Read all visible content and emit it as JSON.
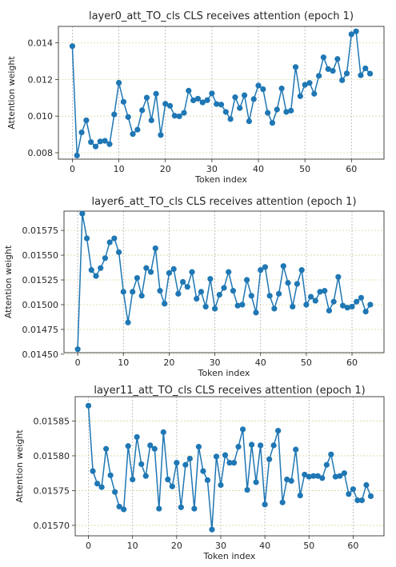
{
  "chart_data": [
    {
      "type": "line",
      "title": "layer0_att_TO_cls CLS receives attention (epoch 1)",
      "xlabel": "Token index",
      "ylabel": "Attention weight",
      "xlim": [
        -3,
        67
      ],
      "ylim": [
        0.00765,
        0.0149
      ],
      "xticks": [
        0,
        10,
        20,
        30,
        40,
        50,
        60
      ],
      "yticks": [
        0.008,
        0.01,
        0.012,
        0.014
      ],
      "ytick_labels": [
        "0.008",
        "0.010",
        "0.012",
        "0.014"
      ],
      "grid": true,
      "series": [
        {
          "color": "#1f77b4",
          "x": [
            0,
            1,
            2,
            3,
            4,
            5,
            6,
            7,
            8,
            9,
            10,
            11,
            12,
            13,
            14,
            15,
            16,
            17,
            18,
            19,
            20,
            21,
            22,
            23,
            24,
            25,
            26,
            27,
            28,
            29,
            30,
            31,
            32,
            33,
            34,
            35,
            36,
            37,
            38,
            39,
            40,
            41,
            42,
            43,
            44,
            45,
            46,
            47,
            48,
            49,
            50,
            51,
            52,
            53,
            54,
            55,
            56,
            57,
            58,
            59,
            60,
            61,
            62,
            63,
            64
          ],
          "values": [
            0.01382,
            0.00785,
            0.00911,
            0.00977,
            0.00858,
            0.00834,
            0.00862,
            0.00865,
            0.00847,
            0.01009,
            0.01182,
            0.01078,
            0.00995,
            0.00902,
            0.00926,
            0.01032,
            0.01101,
            0.00977,
            0.01122,
            0.00897,
            0.01067,
            0.01056,
            0.01002,
            0.00999,
            0.01018,
            0.01139,
            0.01086,
            0.01095,
            0.01075,
            0.01087,
            0.01124,
            0.01066,
            0.01063,
            0.01023,
            0.00984,
            0.01103,
            0.01044,
            0.01114,
            0.00972,
            0.01093,
            0.01167,
            0.01147,
            0.01018,
            0.00963,
            0.01036,
            0.01151,
            0.01023,
            0.0103,
            0.01268,
            0.01109,
            0.01171,
            0.01181,
            0.01122,
            0.0122,
            0.01321,
            0.01257,
            0.01247,
            0.01312,
            0.01196,
            0.01233,
            0.01447,
            0.01463,
            0.01223,
            0.01261,
            0.01232
          ]
        }
      ]
    },
    {
      "type": "line",
      "title": "layer6_att_TO_cls CLS receives attention (epoch 1)",
      "xlabel": "Token index",
      "ylabel": "Attention weight",
      "xlim": [
        -3,
        67
      ],
      "ylim": [
        0.014515,
        0.015945
      ],
      "xticks": [
        0,
        10,
        20,
        30,
        40,
        50,
        60
      ],
      "yticks": [
        0.0145,
        0.01475,
        0.015,
        0.01525,
        0.0155,
        0.01575
      ],
      "ytick_labels": [
        "0.01450",
        "0.01475",
        "0.01500",
        "0.01525",
        "0.01550",
        "0.01575"
      ],
      "grid": true,
      "series": [
        {
          "color": "#1f77b4",
          "x": [
            0,
            1,
            2,
            3,
            4,
            5,
            6,
            7,
            8,
            9,
            10,
            11,
            12,
            13,
            14,
            15,
            16,
            17,
            18,
            19,
            20,
            21,
            22,
            23,
            24,
            25,
            26,
            27,
            28,
            29,
            30,
            31,
            32,
            33,
            34,
            35,
            36,
            37,
            38,
            39,
            40,
            41,
            42,
            43,
            44,
            45,
            46,
            47,
            48,
            49,
            50,
            51,
            52,
            53,
            54,
            55,
            56,
            57,
            58,
            59,
            60,
            61,
            62,
            63,
            64
          ],
          "values": [
            0.01455,
            0.01592,
            0.01567,
            0.01535,
            0.01529,
            0.01537,
            0.01547,
            0.01563,
            0.01567,
            0.01553,
            0.01513,
            0.01482,
            0.01513,
            0.01527,
            0.01509,
            0.01537,
            0.01533,
            0.01557,
            0.01514,
            0.01501,
            0.01532,
            0.01536,
            0.01511,
            0.01523,
            0.01518,
            0.01533,
            0.01506,
            0.01513,
            0.01498,
            0.01526,
            0.01496,
            0.0151,
            0.01517,
            0.01533,
            0.01514,
            0.01499,
            0.015,
            0.01525,
            0.01509,
            0.01492,
            0.01535,
            0.01538,
            0.01509,
            0.01496,
            0.01511,
            0.01539,
            0.01522,
            0.01498,
            0.01521,
            0.01535,
            0.015,
            0.01508,
            0.01504,
            0.01513,
            0.01514,
            0.01494,
            0.01503,
            0.01528,
            0.01499,
            0.01497,
            0.01498,
            0.01503,
            0.01507,
            0.01493,
            0.015
          ]
        }
      ]
    },
    {
      "type": "line",
      "title": "layer11_att_TO_cls CLS receives attention (epoch 1)",
      "xlabel": "Token index",
      "ylabel": "Attention weight",
      "xlim": [
        -3,
        67
      ],
      "ylim": [
        0.015685,
        0.015885
      ],
      "xticks": [
        0,
        10,
        20,
        30,
        40,
        50,
        60
      ],
      "yticks": [
        0.0157,
        0.01575,
        0.0158,
        0.01585
      ],
      "ytick_labels": [
        "0.01570",
        "0.01575",
        "0.01580",
        "0.01585"
      ],
      "grid": true,
      "series": [
        {
          "color": "#1f77b4",
          "x": [
            0,
            1,
            2,
            3,
            4,
            5,
            6,
            7,
            8,
            9,
            10,
            11,
            12,
            13,
            14,
            15,
            16,
            17,
            18,
            19,
            20,
            21,
            22,
            23,
            24,
            25,
            26,
            27,
            28,
            29,
            30,
            31,
            32,
            33,
            34,
            35,
            36,
            37,
            38,
            39,
            40,
            41,
            42,
            43,
            44,
            45,
            46,
            47,
            48,
            49,
            50,
            51,
            52,
            53,
            54,
            55,
            56,
            57,
            58,
            59,
            60,
            61,
            62,
            63,
            64
          ],
          "values": [
            0.015872,
            0.015778,
            0.01576,
            0.015755,
            0.01581,
            0.015772,
            0.015748,
            0.015727,
            0.015723,
            0.015814,
            0.015766,
            0.015827,
            0.015788,
            0.015771,
            0.015815,
            0.01581,
            0.015724,
            0.015834,
            0.015766,
            0.015756,
            0.01579,
            0.015726,
            0.015787,
            0.015796,
            0.015724,
            0.015813,
            0.015778,
            0.015765,
            0.015694,
            0.015799,
            0.015758,
            0.015801,
            0.01579,
            0.01579,
            0.015813,
            0.015838,
            0.015751,
            0.015816,
            0.015762,
            0.015815,
            0.01573,
            0.015795,
            0.015815,
            0.015836,
            0.015733,
            0.015766,
            0.015764,
            0.015809,
            0.015743,
            0.015773,
            0.01577,
            0.015771,
            0.015771,
            0.015768,
            0.015787,
            0.015802,
            0.01577,
            0.015771,
            0.015775,
            0.015745,
            0.015752,
            0.015736,
            0.015736,
            0.015758,
            0.015742
          ]
        }
      ]
    }
  ]
}
